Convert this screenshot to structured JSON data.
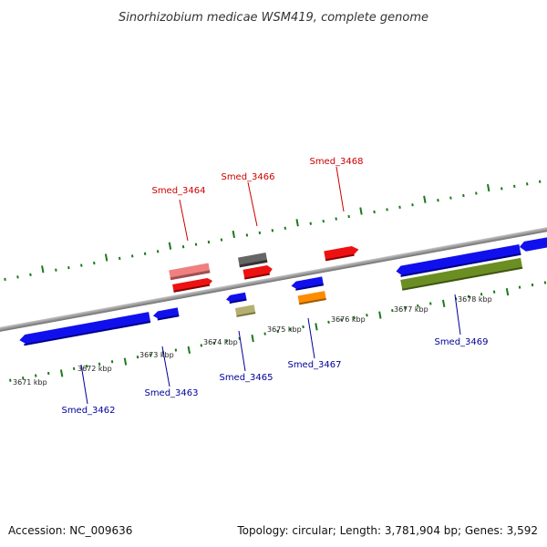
{
  "title": "Sinorhizobium medicae WSM419, complete genome",
  "footer": {
    "accession": "Accession: NC_009636",
    "summary": "Topology: circular; Length: 3,781,904 bp; Genes: 3,592"
  },
  "colors": {
    "backbone": "#8a8a8a",
    "ruler_ticks": "#1a7a1a",
    "top_strand_label": "#cc0000",
    "bottom_strand_label": "#000099"
  },
  "ruler": {
    "unit": "kbp",
    "labels": [
      "3671 kbp",
      "3672 kbp",
      "3673 kbp",
      "3674 kbp",
      "3675 kbp",
      "3676 kbp",
      "3677 kbp",
      "3678 kbp"
    ]
  },
  "genes": [
    {
      "locus": "Smed_3462",
      "strand": "minus",
      "color": "#1010ee"
    },
    {
      "locus": "Smed_3463",
      "strand": "minus",
      "color": "#1010ee"
    },
    {
      "locus": "Smed_3464",
      "strand": "plus",
      "color": "#ee1111"
    },
    {
      "locus": "Smed_3465",
      "strand": "minus",
      "color": "#b5b070"
    },
    {
      "locus": "Smed_3466",
      "strand": "plus",
      "color": "#ee1111"
    },
    {
      "locus": "Smed_3467",
      "strand": "minus",
      "color": "#ff8c00"
    },
    {
      "locus": "Smed_3468",
      "strand": "plus",
      "color": "#ee1111"
    },
    {
      "locus": "Smed_3469",
      "strand": "minus",
      "color": "#6b8e23"
    }
  ],
  "other_features": [
    {
      "name": "pink-feature",
      "color": "#f08080"
    },
    {
      "name": "gray-feature",
      "color": "#666666"
    }
  ]
}
